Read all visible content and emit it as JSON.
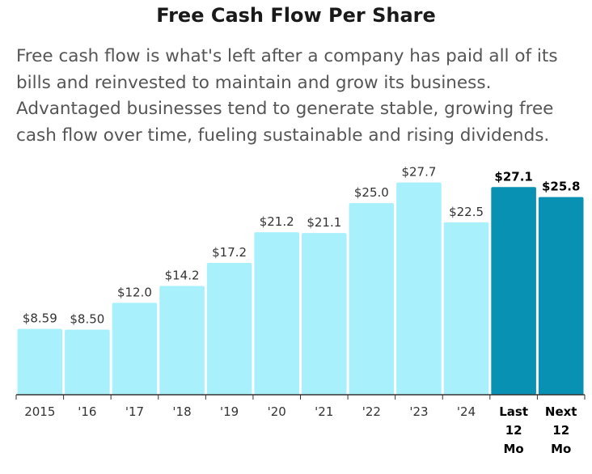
{
  "header": {
    "title": "Free Cash Flow Per Share",
    "subtitle": "Free cash flow is what's left after a company has paid all of its bills and reinvested to maintain and grow its business. Advantaged businesses tend to generate stable, growing free cash flow over time, fueling sustainable and rising dividends."
  },
  "colors": {
    "bar": "#a8f0fb",
    "highlight_bar": "#0891b2",
    "axis": "#333333"
  },
  "chart_data": {
    "type": "bar",
    "title": "Free Cash Flow Per Share",
    "xlabel": "",
    "ylabel": "",
    "ylim": [
      0,
      28.5
    ],
    "grid": false,
    "categories": [
      "2015",
      "'16",
      "'17",
      "'18",
      "'19",
      "'20",
      "'21",
      "'22",
      "'23",
      "'24",
      "Last 12 Mo",
      "Next 12 Mo"
    ],
    "values": [
      8.59,
      8.5,
      12.0,
      14.2,
      17.2,
      21.2,
      21.1,
      25.0,
      27.7,
      22.5,
      27.1,
      25.8
    ],
    "value_labels": [
      "$8.59",
      "$8.50",
      "$12.0",
      "$14.2",
      "$17.2",
      "$21.2",
      "$21.1",
      "$25.0",
      "$27.7",
      "$22.5",
      "$27.1",
      "$25.8"
    ],
    "highlighted": [
      false,
      false,
      false,
      false,
      false,
      false,
      false,
      false,
      false,
      false,
      true,
      true
    ]
  }
}
